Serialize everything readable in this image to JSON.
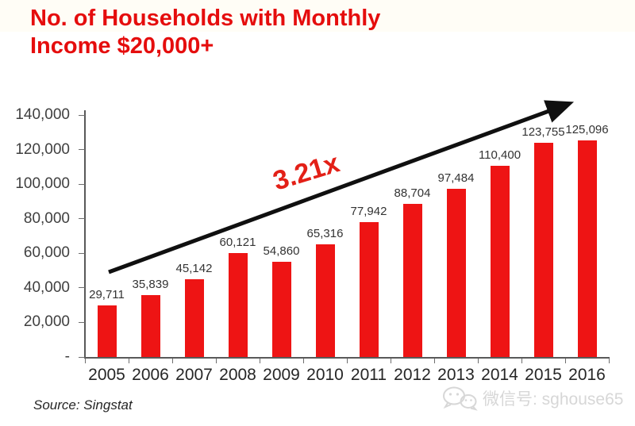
{
  "title": {
    "text": "No. of Households with Monthly Income $20,000+",
    "color": "#e50d0d"
  },
  "annotation": {
    "text": "3.21x",
    "color": "#e32017"
  },
  "source": {
    "text": "Source: Singstat"
  },
  "watermark": {
    "icon": "wechat-icon",
    "text": "微信号: sghouse65",
    "color": "#d7d7d7"
  },
  "chart_data": {
    "type": "bar",
    "title": "No. of Households with Monthly Income $20,000+",
    "categories": [
      "2005",
      "2006",
      "2007",
      "2008",
      "2009",
      "2010",
      "2011",
      "2012",
      "2013",
      "2014",
      "2015",
      "2016"
    ],
    "values": [
      29711,
      35839,
      45142,
      60121,
      54860,
      65316,
      77942,
      88704,
      97484,
      110400,
      123755,
      125096
    ],
    "value_labels": [
      "29,711",
      "35,839",
      "45,142",
      "60,121",
      "54,860",
      "65,316",
      "77,942",
      "88,704",
      "97,484",
      "110,400",
      "123,755",
      "125,096"
    ],
    "bar_color": "#ee1414",
    "xlabel": "",
    "ylabel": "",
    "ylim": [
      0,
      140000
    ],
    "y_ticks": [
      {
        "value": 0,
        "label": "-"
      },
      {
        "value": 20000,
        "label": "20,000"
      },
      {
        "value": 40000,
        "label": "40,000"
      },
      {
        "value": 60000,
        "label": "60,000"
      },
      {
        "value": 80000,
        "label": "80,000"
      },
      {
        "value": 100000,
        "label": "100,000"
      },
      {
        "value": 120000,
        "label": "120,000"
      },
      {
        "value": 140000,
        "label": "140,000"
      }
    ],
    "grid": false,
    "legend": false,
    "trend_annotation": "3.21x"
  }
}
